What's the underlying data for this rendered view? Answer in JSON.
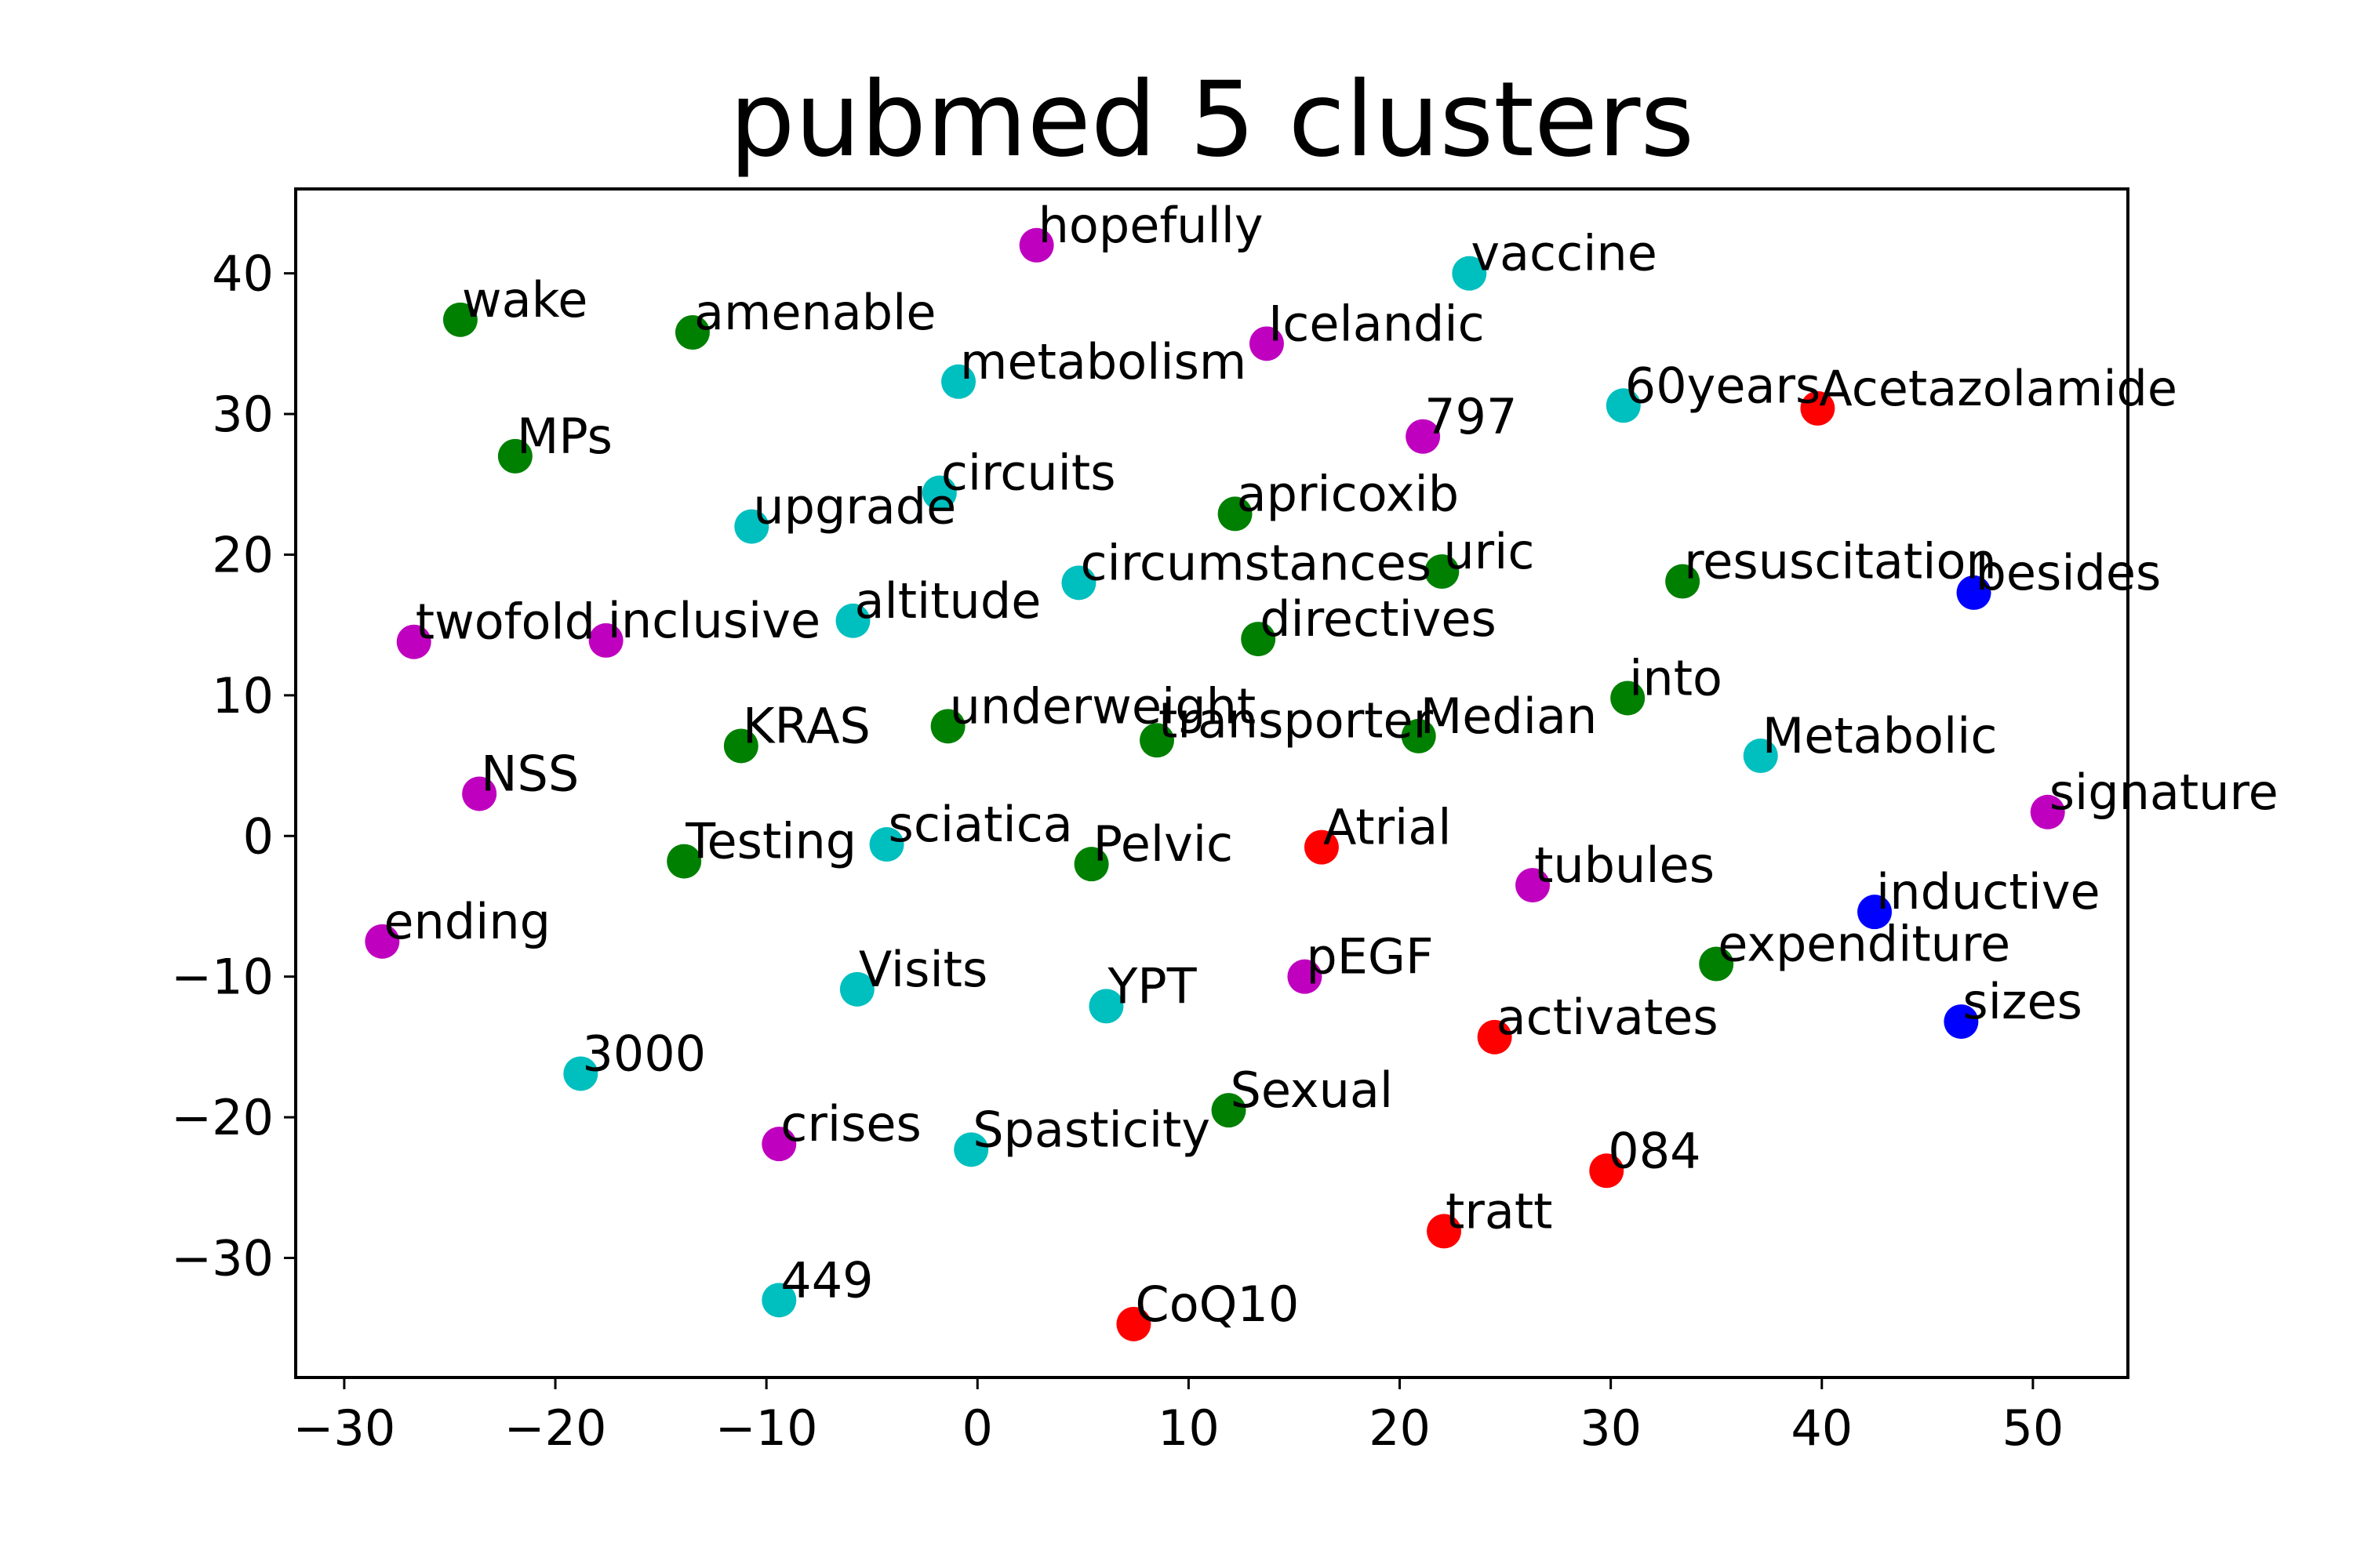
{
  "chart_data": {
    "type": "scatter",
    "title": "pubmed 5 clusters",
    "xlim": [
      -32.3,
      54.5
    ],
    "ylim": [
      -38.5,
      46
    ],
    "xticks": [
      -30,
      -20,
      -10,
      0,
      10,
      20,
      30,
      40,
      50
    ],
    "yticks": [
      -30,
      -20,
      -10,
      0,
      10,
      20,
      30,
      40
    ],
    "xtick_labels": [
      "−30",
      "−20",
      "−10",
      "0",
      "10",
      "20",
      "30",
      "40",
      "50"
    ],
    "ytick_labels": [
      "−30",
      "−20",
      "−10",
      "0",
      "10",
      "20",
      "30",
      "40"
    ],
    "grid": false,
    "colors": {
      "green": "#008000",
      "magenta": "#bf00bf",
      "cyan": "#00bfbf",
      "red": "#ff0000",
      "blue": "#0000ff"
    },
    "points": [
      {
        "label": "wake",
        "x": -24.5,
        "y": 36.7,
        "color": "green"
      },
      {
        "label": "amenable",
        "x": -13.5,
        "y": 35.8,
        "color": "green"
      },
      {
        "label": "hopefully",
        "x": 2.8,
        "y": 42.0,
        "color": "magenta"
      },
      {
        "label": "vaccine",
        "x": 23.3,
        "y": 40.0,
        "color": "cyan"
      },
      {
        "label": "Icelandic",
        "x": 13.7,
        "y": 35.0,
        "color": "magenta"
      },
      {
        "label": "metabolism",
        "x": -0.9,
        "y": 32.3,
        "color": "cyan"
      },
      {
        "label": "60years",
        "x": 30.6,
        "y": 30.6,
        "color": "cyan"
      },
      {
        "label": "Acetazolamide",
        "x": 39.8,
        "y": 30.4,
        "color": "red"
      },
      {
        "label": "797",
        "x": 21.1,
        "y": 28.4,
        "color": "magenta"
      },
      {
        "label": "MPs",
        "x": -21.9,
        "y": 27.0,
        "color": "green"
      },
      {
        "label": "circuits",
        "x": -1.8,
        "y": 24.4,
        "color": "cyan"
      },
      {
        "label": "upgrade",
        "x": -10.7,
        "y": 22.0,
        "color": "cyan"
      },
      {
        "label": "apricoxib",
        "x": 12.2,
        "y": 22.9,
        "color": "green"
      },
      {
        "label": "uric",
        "x": 22.0,
        "y": 18.8,
        "color": "green"
      },
      {
        "label": "circumstances",
        "x": 4.8,
        "y": 18.0,
        "color": "cyan"
      },
      {
        "label": "resuscitation",
        "x": 33.4,
        "y": 18.1,
        "color": "green"
      },
      {
        "label": "besides",
        "x": 47.2,
        "y": 17.3,
        "color": "blue"
      },
      {
        "label": "altitude",
        "x": -5.9,
        "y": 15.3,
        "color": "cyan"
      },
      {
        "label": "twofold",
        "x": -26.7,
        "y": 13.8,
        "color": "magenta"
      },
      {
        "label": "inclusive",
        "x": -17.6,
        "y": 13.9,
        "color": "magenta"
      },
      {
        "label": "directives",
        "x": 13.3,
        "y": 14.0,
        "color": "green"
      },
      {
        "label": "into",
        "x": 30.8,
        "y": 9.8,
        "color": "green"
      },
      {
        "label": "KRAS",
        "x": -11.2,
        "y": 6.4,
        "color": "green"
      },
      {
        "label": "underweight",
        "x": -1.4,
        "y": 7.8,
        "color": "green"
      },
      {
        "label": "transporter",
        "x": 8.5,
        "y": 6.8,
        "color": "green"
      },
      {
        "label": "Median",
        "x": 20.9,
        "y": 7.1,
        "color": "green"
      },
      {
        "label": "Metabolic",
        "x": 37.1,
        "y": 5.7,
        "color": "cyan"
      },
      {
        "label": "signature",
        "x": 50.7,
        "y": 1.7,
        "color": "magenta"
      },
      {
        "label": "NSS",
        "x": -23.6,
        "y": 3.0,
        "color": "magenta"
      },
      {
        "label": "Testing",
        "x": -13.9,
        "y": -1.8,
        "color": "green"
      },
      {
        "label": "sciatica",
        "x": -4.3,
        "y": -0.6,
        "color": "cyan"
      },
      {
        "label": "Pelvic",
        "x": 5.4,
        "y": -2.0,
        "color": "green"
      },
      {
        "label": "Atrial",
        "x": 16.3,
        "y": -0.8,
        "color": "red"
      },
      {
        "label": "tubules",
        "x": 26.3,
        "y": -3.5,
        "color": "magenta"
      },
      {
        "label": "inductive",
        "x": 42.5,
        "y": -5.4,
        "color": "blue"
      },
      {
        "label": "ending",
        "x": -28.2,
        "y": -7.5,
        "color": "magenta"
      },
      {
        "label": "expenditure",
        "x": 35.0,
        "y": -9.1,
        "color": "green"
      },
      {
        "label": "pEGF",
        "x": 15.5,
        "y": -10.0,
        "color": "magenta"
      },
      {
        "label": "Visits",
        "x": -5.7,
        "y": -10.9,
        "color": "cyan"
      },
      {
        "label": "YPT",
        "x": 6.1,
        "y": -12.1,
        "color": "cyan"
      },
      {
        "label": "sizes",
        "x": 46.6,
        "y": -13.2,
        "color": "blue"
      },
      {
        "label": "activates",
        "x": 24.5,
        "y": -14.3,
        "color": "red"
      },
      {
        "label": "3000",
        "x": -18.8,
        "y": -16.9,
        "color": "cyan"
      },
      {
        "label": "Sexual",
        "x": 11.9,
        "y": -19.5,
        "color": "green"
      },
      {
        "label": "crises",
        "x": -9.4,
        "y": -21.9,
        "color": "magenta"
      },
      {
        "label": "Spasticity",
        "x": -0.3,
        "y": -22.3,
        "color": "cyan"
      },
      {
        "label": "084",
        "x": 29.8,
        "y": -23.8,
        "color": "red"
      },
      {
        "label": "tratt",
        "x": 22.1,
        "y": -28.1,
        "color": "red"
      },
      {
        "label": "449",
        "x": -9.4,
        "y": -33.0,
        "color": "cyan"
      },
      {
        "label": "CoQ10",
        "x": 7.4,
        "y": -34.7,
        "color": "red"
      }
    ]
  }
}
